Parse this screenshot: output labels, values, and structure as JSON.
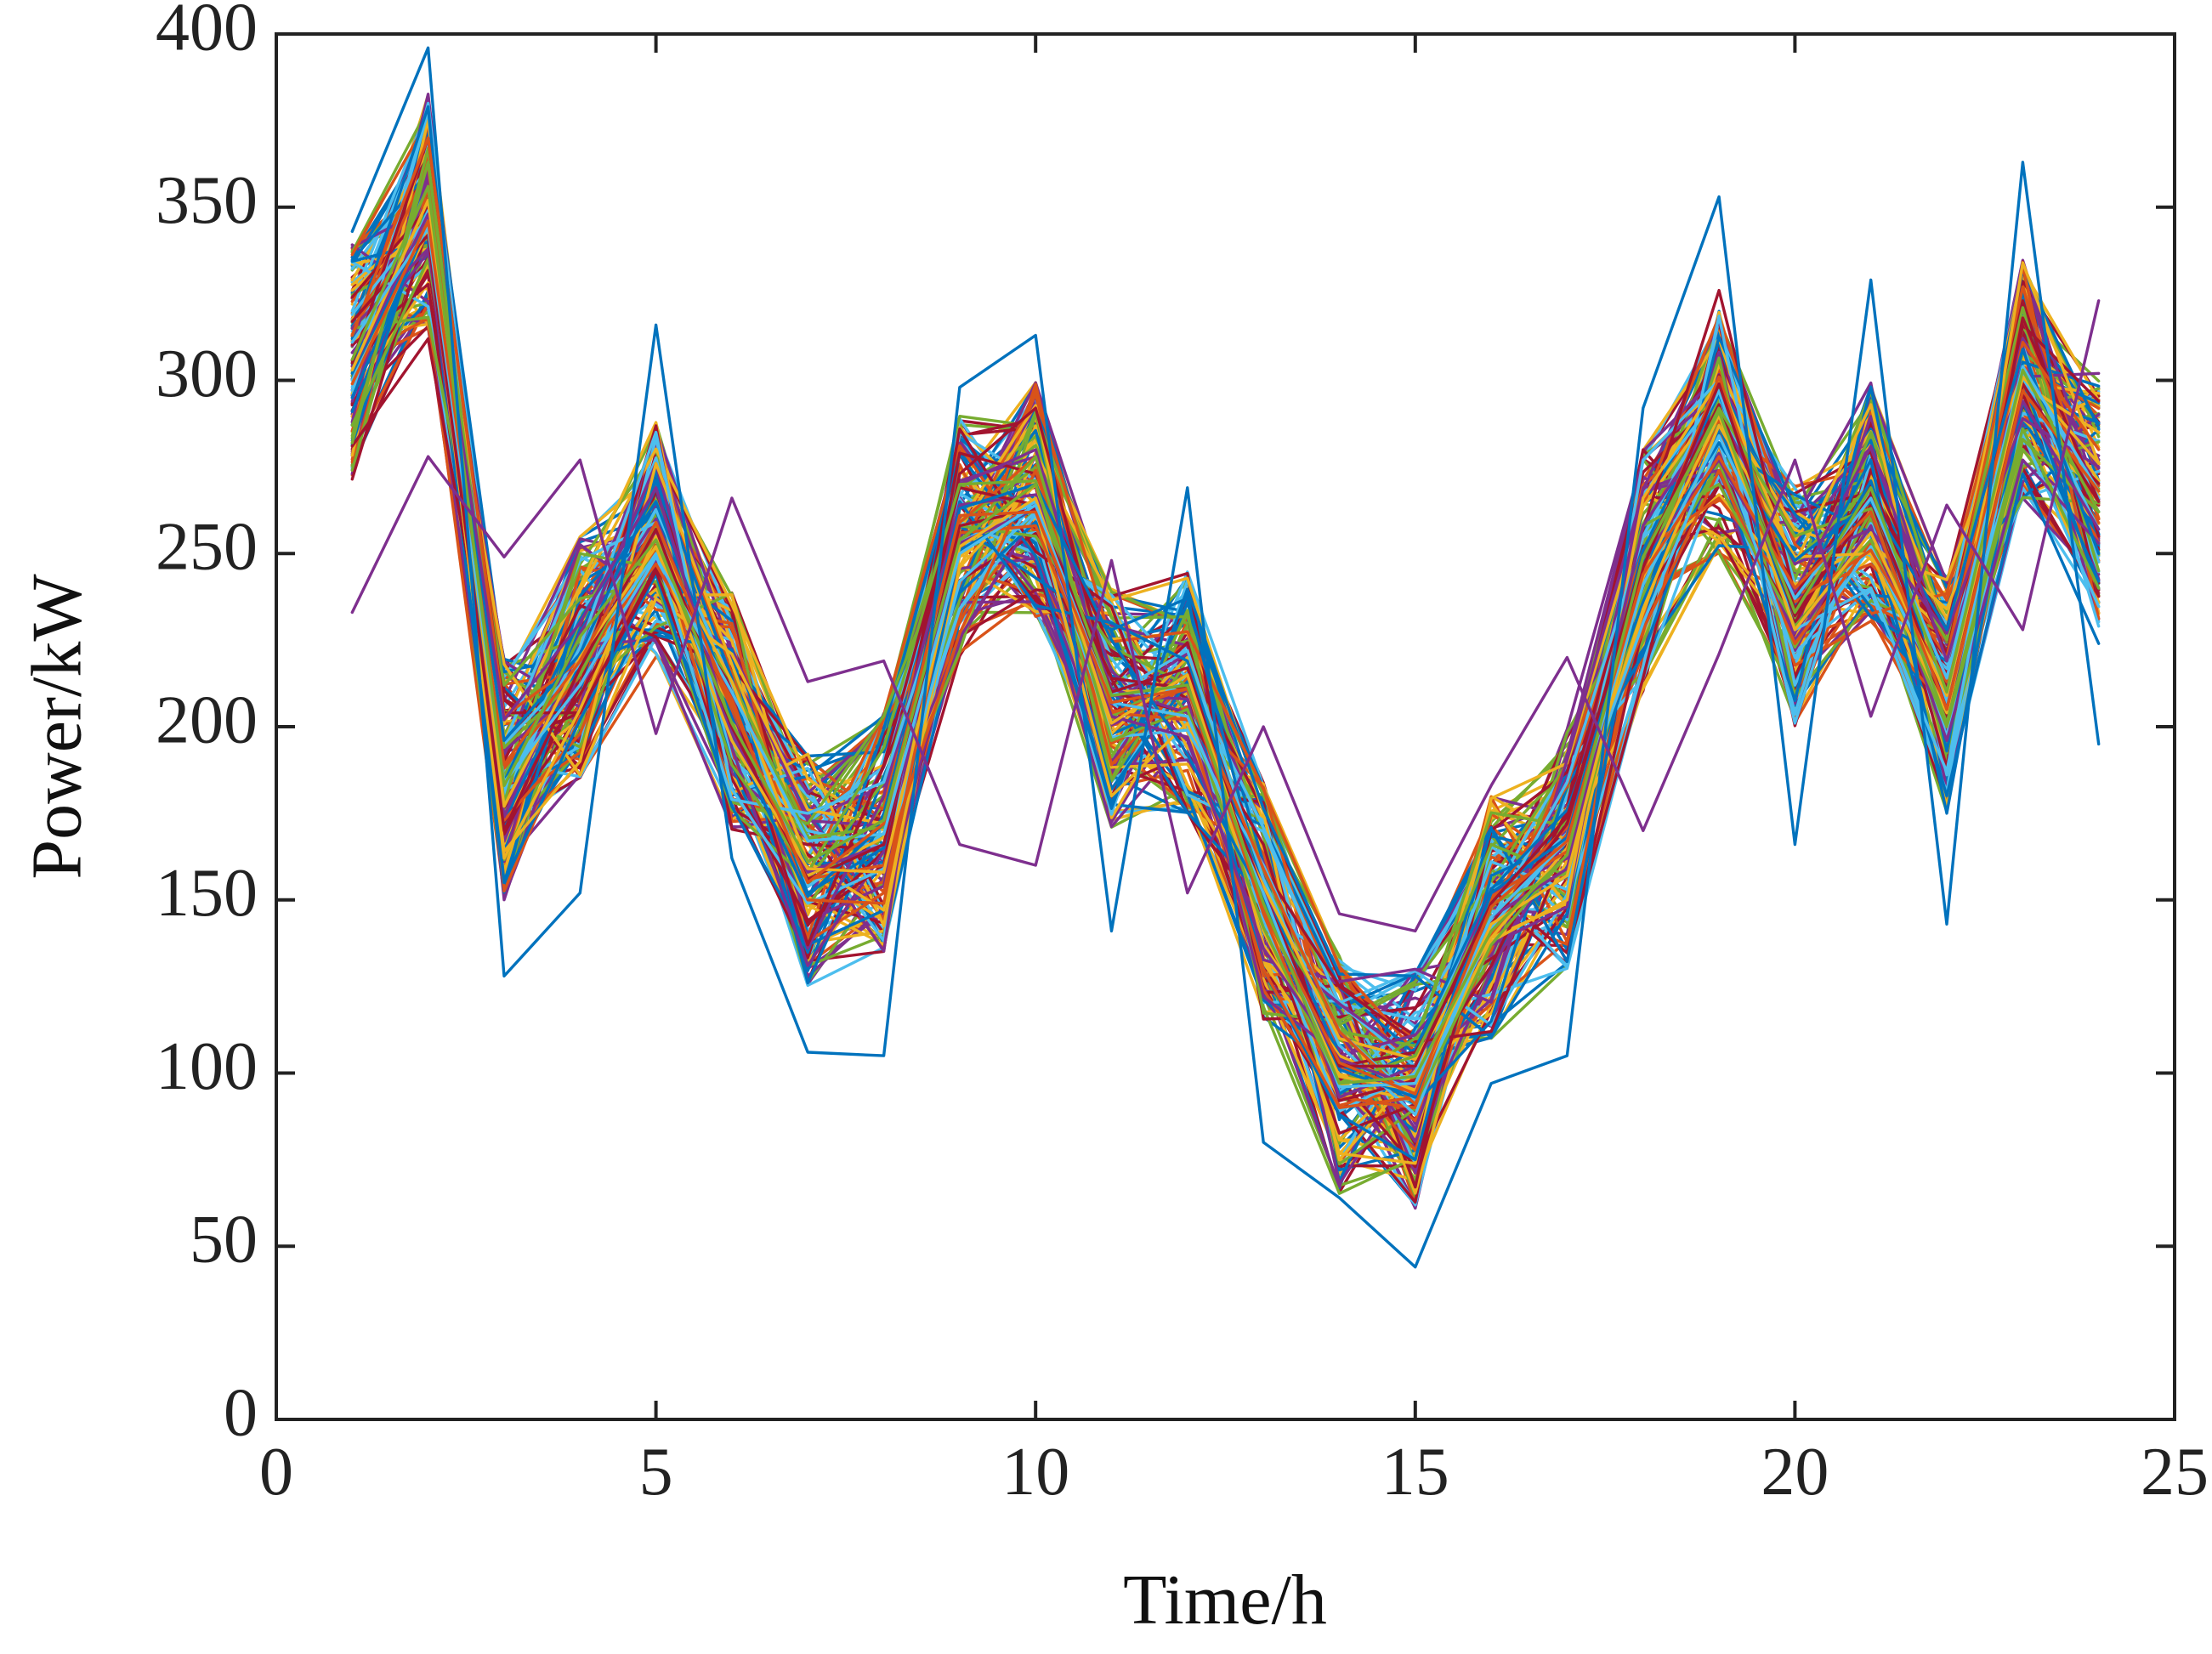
{
  "chart_data": {
    "type": "line",
    "title": "",
    "xlabel": "Time/h",
    "ylabel": "Power/kW",
    "xlim": [
      0,
      25
    ],
    "ylim": [
      0,
      400
    ],
    "xticks": [
      0,
      5,
      10,
      15,
      20,
      25
    ],
    "yticks": [
      0,
      50,
      100,
      150,
      200,
      250,
      300,
      350,
      400
    ],
    "grid": false,
    "legend": "none",
    "x": [
      1,
      2,
      3,
      4,
      5,
      6,
      7,
      8,
      9,
      10,
      11,
      12,
      13,
      14,
      15,
      16,
      17,
      18,
      19,
      20,
      21,
      22,
      23,
      24
    ],
    "base_profile": [
      305,
      350,
      185,
      220,
      255,
      205,
      160,
      170,
      255,
      265,
      205,
      210,
      150,
      100,
      95,
      145,
      165,
      245,
      285,
      235,
      265,
      210,
      300,
      265
    ],
    "palette": [
      "#0072BD",
      "#D95319",
      "#EDB120",
      "#7E2F8E",
      "#77AC30",
      "#4DBEEE",
      "#A2142F"
    ],
    "series": [
      {
        "values": [
          291,
          345,
          155,
          227,
          273,
          214,
          126,
          175,
          258,
          243,
          228,
          237,
          153,
          105,
          91,
          115,
          183,
          221,
          282,
          267,
          256,
          180,
          273,
          224
        ]
      },
      {
        "values": [
          308,
          337,
          174,
          227,
          260,
          205,
          144,
          154,
          271,
          278,
          216,
          196,
          138,
          120,
          104,
          130,
          168,
          268,
          277,
          222,
          262,
          198,
          301,
          302
        ]
      },
      {
        "values": [
          281,
          312,
          190,
          235,
          226,
          190,
          143,
          164,
          279,
          273,
          222,
          208,
          159,
          125,
          109,
          112,
          166,
          237,
          270,
          230,
          268,
          228,
          323,
          255
        ]
      },
      {
        "values": [
          326,
          345,
          218,
          186,
          237,
          221,
          176,
          172,
          249,
          271,
          210,
          211,
          141,
          97,
          92,
          139,
          149,
          246,
          267,
          241,
          253,
          234,
          289,
          267
        ]
      },
      {
        "values": [
          295,
          380,
          195,
          248,
          259,
          195,
          170,
          165,
          234,
          266,
          209,
          211,
          145,
          89,
          100,
          161,
          153,
          267,
          296,
          201,
          270,
          197,
          303,
          229
        ]
      },
      {
        "values": [
          315,
          347,
          173,
          198,
          252,
          209,
          138,
          152,
          259,
          278,
          189,
          214,
          146,
          93,
          90,
          149,
          183,
          251,
          266,
          238,
          247,
          225,
          327,
          260
        ]
      },
      {
        "values": [
          287,
          335,
          212,
          237,
          242,
          176,
          156,
          184,
          258,
          255,
          223,
          212,
          150,
          97,
          110,
          166,
          157,
          238,
          276,
          223,
          262,
          225,
          321,
          245
        ]
      },
      {
        "values": [
          312,
          379,
          155,
          202,
          244,
          177,
          137,
          147,
          251,
          263,
          182,
          213,
          130,
          88,
          75,
          157,
          167,
          251,
          296,
          236,
          277,
          175,
          294,
          242
        ]
      },
      {
        "values": [
          294,
          361,
          174,
          223,
          276,
          194,
          131,
          164,
          270,
          280,
          209,
          208,
          122,
          105,
          111,
          137,
          148,
          269,
          274,
          225,
          258,
          196,
          277,
          253
        ]
      },
      {
        "values": [
          324,
          350,
          195,
          204,
          245,
          185,
          144,
          160,
          273,
          292,
          210,
          204,
          166,
          92,
          98,
          131,
          176,
          257,
          326,
          238,
          270,
          221,
          316,
          294
        ]
      },
      {
        "values": [
          300,
          343,
          164,
          190,
          276,
          218,
          161,
          147,
          246,
          270,
          198,
          220,
          137,
          105,
          95,
          138,
          150,
          266,
          300,
          247,
          293,
          200,
          334,
          276
        ]
      },
      {
        "values": [
          300,
          349,
          181,
          223,
          285,
          182,
          149,
          159,
          242,
          262,
          209,
          222,
          156,
          108,
          88,
          144,
          184,
          255,
          297,
          228,
          240,
          187,
          304,
          266
        ]
      },
      {
        "values": [
          313,
          362,
          188,
          215,
          254,
          205,
          156,
          160,
          227,
          274,
          204,
          202,
          130,
          90,
          93,
          150,
          171,
          228,
          274,
          224,
          253,
          220,
          318,
          260
        ]
      },
      {
        "values": [
          282,
          367,
          178,
          250,
          246,
          213,
          168,
          171,
          253,
          278,
          203,
          215,
          147,
          114,
          91,
          137,
          163,
          258,
          270,
          229,
          254,
          200,
          283,
          262
        ]
      },
      {
        "values": [
          295,
          345,
          184,
          231,
          265,
          206,
          152,
          165,
          265,
          235,
          230,
          219,
          152,
          94,
          107,
          153,
          176,
          236,
          287,
          232,
          271,
          204,
          300,
          240
        ]
      },
      {
        "values": [
          315,
          338,
          193,
          212,
          248,
          209,
          136,
          180,
          264,
          267,
          211,
          204,
          154,
          93,
          102,
          152,
          162,
          258,
          291,
          247,
          257,
          227,
          289,
          275
        ]
      },
      {
        "values": [
          305,
          370,
          204,
          204,
          246,
          208,
          137,
          189,
          269,
          264,
          210,
          217,
          149,
          102,
          106,
          143,
          172,
          249,
          293,
          232,
          264,
          202,
          318,
          265
        ]
      },
      {
        "values": [
          302,
          345,
          162,
          205,
          255,
          213,
          157,
          168,
          258,
          263,
          180,
          201,
          154,
          110,
          104,
          139,
          165,
          234,
          287,
          249,
          250,
          204,
          299,
          285
        ]
      },
      {
        "values": [
          319,
          347,
          195,
          218,
          250,
          179,
          175,
          184,
          253,
          265,
          197,
          199,
          160,
          112,
          92,
          142,
          168,
          230,
          282,
          220,
          252,
          207,
          301,
          257
        ]
      },
      {
        "values": [
          313,
          370,
          203,
          219,
          247,
          208,
          150,
          149,
          256,
          258,
          204,
          211,
          159,
          112,
          91,
          151,
          164,
          245,
          301,
          236,
          251,
          213,
          311,
          280
        ]
      },
      {
        "values": [
          284,
          363,
          194,
          215,
          258,
          189,
          158,
          194,
          270,
          271,
          196,
          205,
          142,
          97,
          105,
          149,
          158,
          247,
          292,
          255,
          263,
          201,
          286,
          240
        ]
      },
      {
        "values": [
          302,
          346,
          196,
          221,
          269,
          198,
          151,
          172,
          263,
          270,
          225,
          192,
          150,
          101,
          93,
          152,
          168,
          247,
          282,
          248,
          265,
          228,
          309,
          250
        ]
      },
      {
        "values": [
          303,
          348,
          202,
          230,
          269,
          198,
          158,
          166,
          253,
          263,
          203,
          197,
          136,
          104,
          96,
          145,
          159,
          249,
          277,
          239,
          281,
          219,
          294,
          257
        ]
      },
      {
        "values": [
          317,
          342,
          170,
          217,
          257,
          200,
          156,
          166,
          258,
          263,
          214,
          211,
          152,
          102,
          102,
          149,
          174,
          246,
          299,
          234,
          267,
          205,
          299,
          265
        ]
      },
      {
        "values": [
          303,
          352,
          177,
          220,
          252,
          196,
          159,
          158,
          252,
          266,
          201,
          215,
          148,
          99,
          95,
          143,
          157,
          243,
          290,
          228,
          256,
          209,
          301,
          276
        ]
      },
      {
        "values": [
          311,
          344,
          184,
          212,
          249,
          210,
          167,
          169,
          250,
          264,
          207,
          203,
          152,
          96,
          97,
          145,
          167,
          241,
          284,
          237,
          266,
          214,
          304,
          268
        ]
      },
      {
        "values": [
          299,
          346,
          189,
          219,
          259,
          206,
          155,
          172,
          261,
          262,
          207,
          211,
          147,
          103,
          94,
          148,
          167,
          244,
          278,
          240,
          262,
          205,
          297,
          268
        ]
      },
      {
        "values": [
          306,
          356,
          183,
          226,
          254,
          201,
          161,
          173,
          254,
          270,
          209,
          212,
          149,
          97,
          99,
          141,
          163,
          249,
          291,
          233,
          269,
          210,
          303,
          262
        ]
      },
      {
        "values": [
          343,
          396,
          128,
          152,
          316,
          162,
          106,
          105,
          298,
          313,
          141,
          269,
          80,
          64,
          44,
          97,
          105,
          292,
          353,
          166,
          329,
          143,
          363,
          195
        ]
      },
      {
        "values": [
          233,
          278,
          249,
          277,
          198,
          266,
          213,
          219,
          166,
          160,
          248,
          152,
          200,
          146,
          141,
          183,
          220,
          170,
          221,
          277,
          203,
          264,
          228,
          323
        ]
      }
    ]
  }
}
